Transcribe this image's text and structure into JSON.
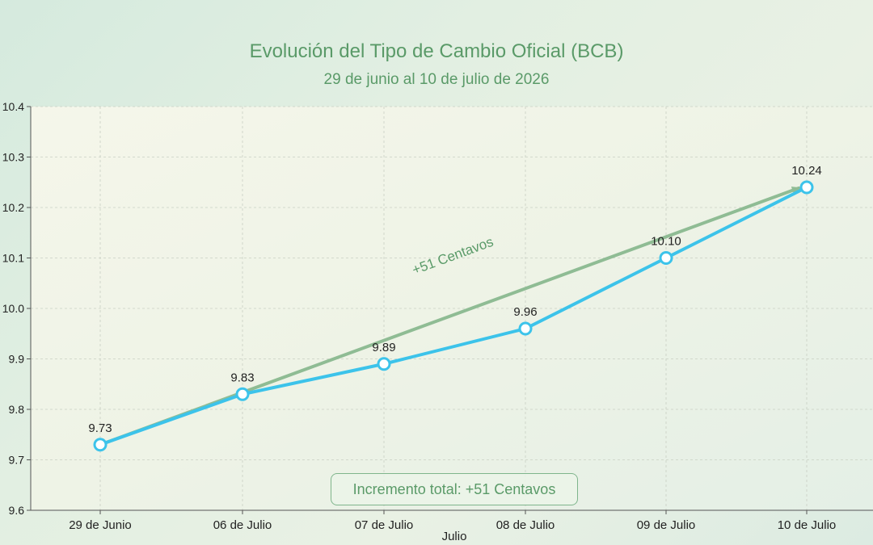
{
  "chart_data": {
    "type": "line",
    "title": "Evolución del Tipo de Cambio Oficial (BCB)",
    "subtitle": "29 de junio al 10 de julio de 2026",
    "xlabel": "Julio",
    "ylabel": "",
    "categories": [
      "29 de Junio",
      "06 de Julio",
      "07 de Julio",
      "08 de Julio",
      "09 de Julio",
      "10 de Julio"
    ],
    "series": [
      {
        "values": [
          9.73,
          9.83,
          9.89,
          9.96,
          10.1,
          10.24
        ],
        "color": "#3cc3ea"
      }
    ],
    "data_labels": [
      "9.73",
      "9.83",
      "9.89",
      "9.96",
      "10.10",
      "10.24"
    ],
    "ylim": [
      9.6,
      10.4
    ],
    "y_ticks": [
      9.6,
      9.7,
      9.8,
      9.9,
      10.0,
      10.1,
      10.2,
      10.3,
      10.4
    ],
    "y_tick_labels": [
      "9.6",
      "9.7",
      "9.8",
      "9.9",
      "10.0",
      "10.1",
      "10.2",
      "10.3",
      "10.4"
    ],
    "grid": true,
    "trend_arrow": {
      "from": 9.73,
      "to": 10.24,
      "label": "+51 Centavos",
      "color": "#8fbc94"
    },
    "annotation_box": "Incremento total: +51 Centavos"
  }
}
